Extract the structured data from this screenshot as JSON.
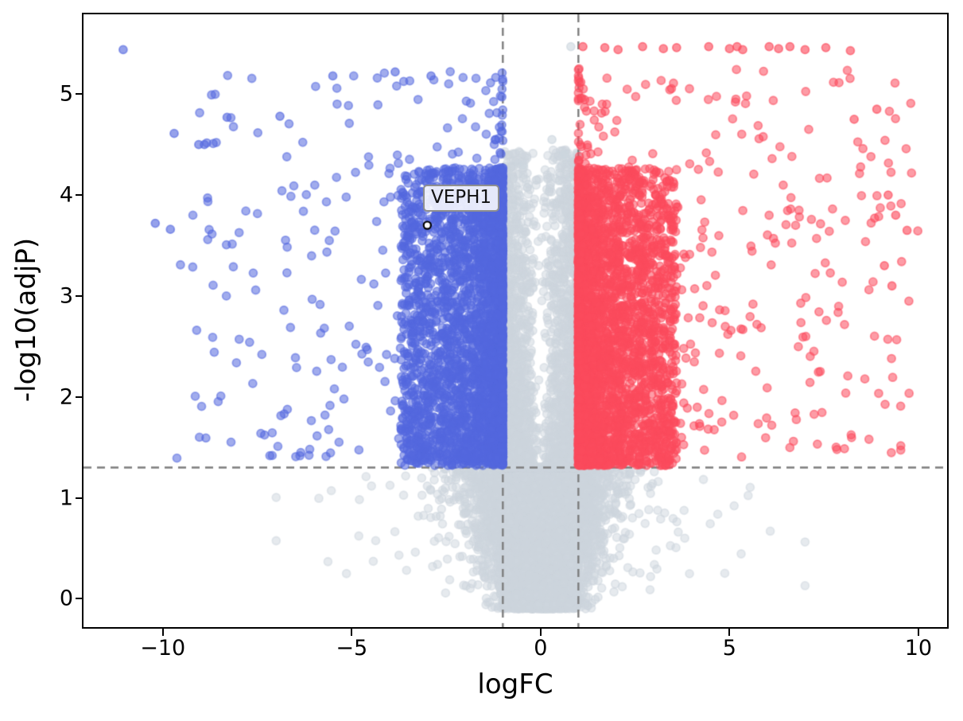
{
  "figure": {
    "background": "#ffffff"
  },
  "chart_data": {
    "type": "scatter",
    "subtype": "volcano-plot",
    "title": "",
    "xlabel": "logFC",
    "ylabel": "-log10(adjP)",
    "xlim": [
      -12.1,
      10.76
    ],
    "ylim": [
      -0.28,
      5.79
    ],
    "x_ticks": [
      -10,
      -5,
      0,
      5,
      10
    ],
    "y_ticks": [
      0,
      1,
      2,
      3,
      4,
      5
    ],
    "grid": false,
    "legend": null,
    "thresholds": {
      "vlines": [
        -1,
        1
      ],
      "hline": 1.3,
      "line_style": "dashed",
      "line_color": "#7d7d7d",
      "dash": [
        10,
        7
      ],
      "line_width": 2.4
    },
    "palette": {
      "up": "#fc4a5c",
      "down": "#5468de",
      "ns": "#cdd6de"
    },
    "marker": {
      "radius": 5,
      "edge_width": 1.8
    },
    "annotation": {
      "text": "VEPH1",
      "x": -3.0,
      "y": 3.7
    },
    "seed": 20,
    "series": [
      {
        "name": "non-significant-funnel",
        "role": "ns",
        "layer": "below",
        "kind": "funnel",
        "count": 5200,
        "alpha": 0.5,
        "y_min": -0.1,
        "y_max": 1.32,
        "x_sd_base": 0.42,
        "x_sd_slope": 0.52
      },
      {
        "name": "non-significant-bottom-pile",
        "role": "ns",
        "layer": "below",
        "kind": "pile",
        "count": 900,
        "alpha": 0.5,
        "x_sd": 0.5,
        "y_base": -0.1,
        "y_sd": 0.13
      },
      {
        "name": "non-significant-wings",
        "role": "ns",
        "layer": "below",
        "kind": "wings",
        "count": 170,
        "alpha": 0.5,
        "x_start": 1.1,
        "x_scale": 1.4,
        "x_max": 7.0,
        "y_min": 0.05,
        "y_max": 1.28
      },
      {
        "name": "non-significant-center-column",
        "role": "ns",
        "layer": "below",
        "kind": "column",
        "count": 2400,
        "alpha": 0.5,
        "x_half": 0.97,
        "edge_bias": 0.5,
        "y_base": 1.3,
        "y_range": 3.15,
        "y_pow": 2.1
      },
      {
        "name": "down-regulated-dense",
        "role": "down",
        "layer": "above",
        "kind": "block",
        "sign": -1,
        "count": 3000,
        "alpha": 0.55,
        "x_pow": 2.2,
        "x_scale": 2.7,
        "y_base": 1.32,
        "y_range": 2.95,
        "y_pow": 1.2
      },
      {
        "name": "down-regulated-spread",
        "role": "down",
        "layer": "above",
        "kind": "block",
        "sign": -1,
        "count": 400,
        "alpha": 0.55,
        "x_pow": 2.6,
        "x_scale": 8.8,
        "y_base": 1.38,
        "y_range": 3.85,
        "y_pow": 1.3
      },
      {
        "name": "up-regulated-dense",
        "role": "up",
        "layer": "above",
        "kind": "block",
        "sign": 1,
        "count": 3200,
        "alpha": 0.55,
        "x_pow": 2.2,
        "x_scale": 2.6,
        "y_base": 1.32,
        "y_range": 2.95,
        "y_pow": 1.2
      },
      {
        "name": "up-regulated-spread",
        "role": "up",
        "layer": "above",
        "kind": "block",
        "sign": 1,
        "count": 470,
        "alpha": 0.55,
        "x_pow": 2.4,
        "x_scale": 9.0,
        "y_base": 1.38,
        "y_range": 3.9,
        "y_pow": 1.25
      }
    ],
    "highlight_points": [
      {
        "role": "down",
        "x": -11.05,
        "y": 5.44
      },
      {
        "role": "ns",
        "x": 0.8,
        "y": 5.47
      },
      {
        "role": "ns",
        "x": -0.45,
        "y": 4.3
      },
      {
        "role": "ns",
        "x": 0.3,
        "y": 4.55
      },
      {
        "role": "ns",
        "x": 0.62,
        "y": 4.4
      },
      {
        "role": "down",
        "x": -5.5,
        "y": 5.18
      },
      {
        "role": "down",
        "x": -3.85,
        "y": 5.22
      },
      {
        "role": "down",
        "x": -2.9,
        "y": 5.18
      },
      {
        "role": "down",
        "x": -6.9,
        "y": 4.78
      },
      {
        "role": "down",
        "x": -8.3,
        "y": 4.77
      },
      {
        "role": "down",
        "x": -9.7,
        "y": 4.61
      },
      {
        "role": "down",
        "x": -9.05,
        "y": 4.5
      },
      {
        "role": "down",
        "x": -8.9,
        "y": 4.5
      },
      {
        "role": "down",
        "x": -10.2,
        "y": 3.72
      },
      {
        "role": "down",
        "x": -9.8,
        "y": 3.66
      },
      {
        "role": "up",
        "x": 1.12,
        "y": 5.47
      },
      {
        "role": "up",
        "x": 1.7,
        "y": 5.46
      },
      {
        "role": "up",
        "x": 2.05,
        "y": 5.44
      },
      {
        "role": "up",
        "x": 2.7,
        "y": 5.47
      },
      {
        "role": "up",
        "x": 3.25,
        "y": 5.45
      },
      {
        "role": "up",
        "x": 3.6,
        "y": 5.46
      },
      {
        "role": "up",
        "x": 4.45,
        "y": 5.47
      },
      {
        "role": "up",
        "x": 5.0,
        "y": 5.45
      },
      {
        "role": "up",
        "x": 5.2,
        "y": 5.47
      },
      {
        "role": "up",
        "x": 5.35,
        "y": 5.44
      },
      {
        "role": "up",
        "x": 6.05,
        "y": 5.47
      },
      {
        "role": "up",
        "x": 6.3,
        "y": 5.45
      },
      {
        "role": "up",
        "x": 6.6,
        "y": 5.47
      },
      {
        "role": "up",
        "x": 7.0,
        "y": 5.44
      },
      {
        "role": "up",
        "x": 7.55,
        "y": 5.46
      },
      {
        "role": "up",
        "x": 8.2,
        "y": 5.43
      },
      {
        "role": "up",
        "x": 8.9,
        "y": 4.85
      },
      {
        "role": "up",
        "x": 8.3,
        "y": 4.75
      },
      {
        "role": "up",
        "x": 9.2,
        "y": 4.0
      },
      {
        "role": "up",
        "x": 9.4,
        "y": 3.8
      },
      {
        "role": "up",
        "x": 9.7,
        "y": 3.65
      },
      {
        "role": "up",
        "x": 9.1,
        "y": 3.3
      },
      {
        "role": "up",
        "x": 9.3,
        "y": 3.1
      }
    ]
  }
}
